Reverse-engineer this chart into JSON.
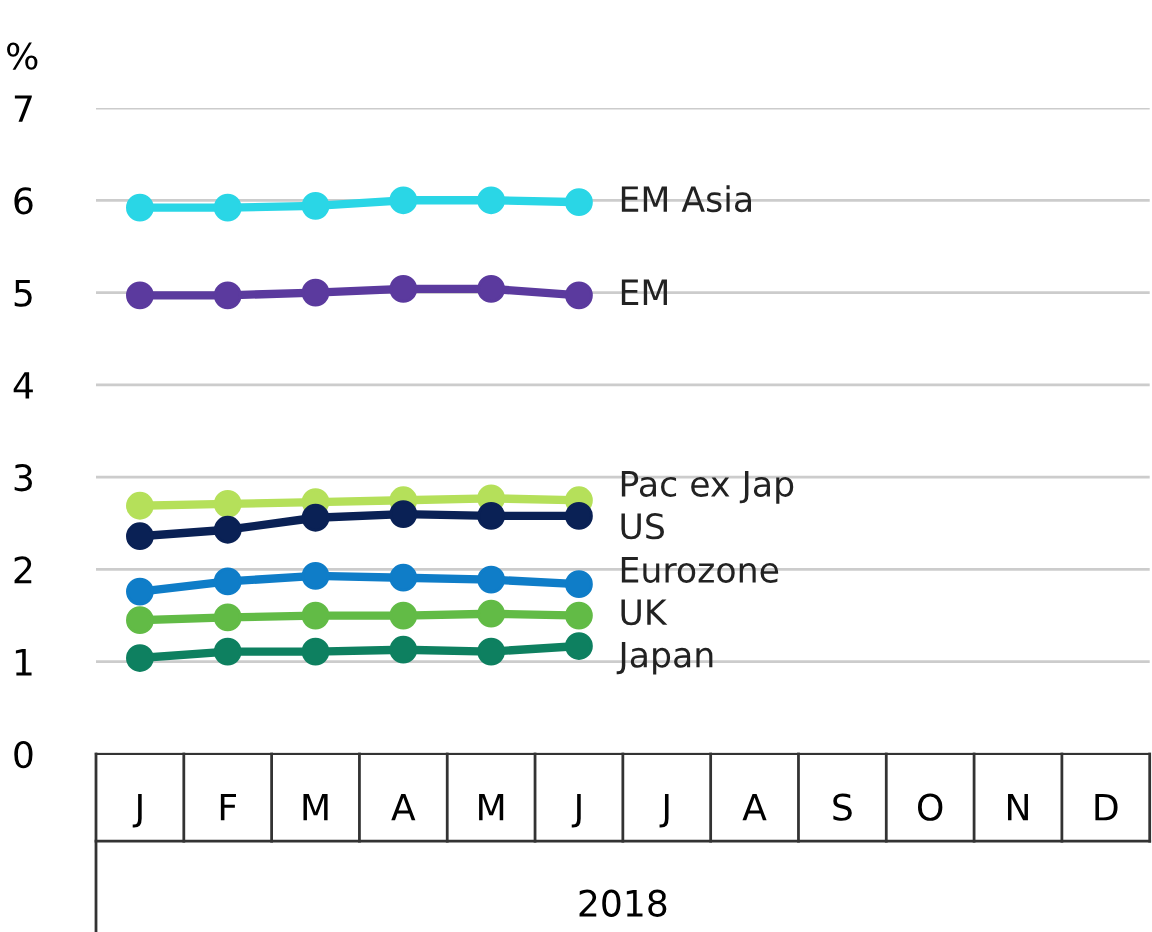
{
  "chart_data": {
    "type": "line",
    "ylabel": "%",
    "xlabel": "2018",
    "categories": [
      "J",
      "F",
      "M",
      "A",
      "M",
      "J",
      "J",
      "A",
      "S",
      "O",
      "N",
      "D"
    ],
    "ylim": [
      0,
      7
    ],
    "yticks": [
      0,
      1,
      2,
      3,
      4,
      5,
      6,
      7
    ],
    "grid": "y",
    "legend": false,
    "marker": "circle",
    "line_style": "solid",
    "series": [
      {
        "name": "EM Asia",
        "color": "#2ad6e6",
        "values": [
          5.92,
          5.92,
          5.94,
          6.0,
          6.0,
          5.98,
          null,
          null,
          null,
          null,
          null,
          null
        ]
      },
      {
        "name": "EM",
        "color": "#5b3a9e",
        "values": [
          4.97,
          4.97,
          5.0,
          5.04,
          5.04,
          4.97,
          null,
          null,
          null,
          null,
          null,
          null
        ]
      },
      {
        "name": "Pac ex Jap",
        "color": "#b5e05a",
        "values": [
          2.69,
          2.71,
          2.73,
          2.75,
          2.77,
          2.75,
          null,
          null,
          null,
          null,
          null,
          null
        ]
      },
      {
        "name": "US",
        "color": "#0a2155",
        "values": [
          2.36,
          2.43,
          2.56,
          2.6,
          2.58,
          2.58,
          null,
          null,
          null,
          null,
          null,
          null
        ]
      },
      {
        "name": "Eurozone",
        "color": "#0f7dc8",
        "values": [
          1.76,
          1.87,
          1.93,
          1.91,
          1.89,
          1.84,
          null,
          null,
          null,
          null,
          null,
          null
        ]
      },
      {
        "name": "UK",
        "color": "#62bb46",
        "values": [
          1.45,
          1.48,
          1.5,
          1.5,
          1.52,
          1.5,
          null,
          null,
          null,
          null,
          null,
          null
        ]
      },
      {
        "name": "Japan",
        "color": "#0e8060",
        "values": [
          1.04,
          1.11,
          1.11,
          1.13,
          1.11,
          1.17,
          null,
          null,
          null,
          null,
          null,
          null
        ]
      }
    ]
  }
}
